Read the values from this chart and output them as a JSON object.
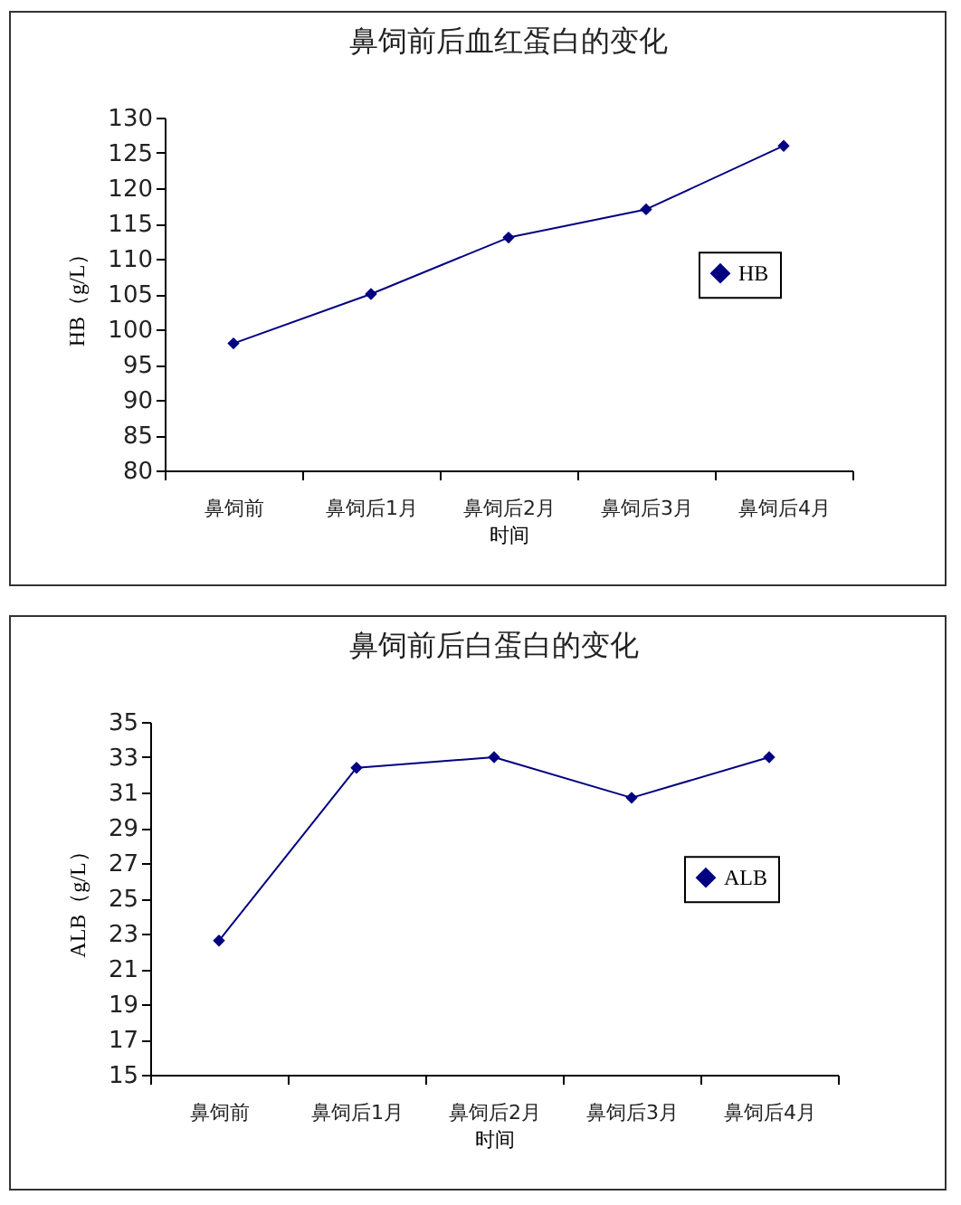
{
  "chart_data": [
    {
      "type": "line",
      "title": "鼻饲前后血红蛋白的变化",
      "xlabel": "时间",
      "ylabel": "HB（g/L）",
      "categories": [
        "鼻饲前",
        "鼻饲后1月",
        "鼻饲后2月",
        "鼻饲后3月",
        "鼻饲后4月"
      ],
      "series": [
        {
          "name": "HB",
          "color": "#000080",
          "values": [
            98,
            105,
            113,
            117,
            126
          ]
        }
      ],
      "ylim": [
        80,
        130
      ],
      "yticks": [
        80,
        85,
        90,
        95,
        100,
        105,
        110,
        115,
        120,
        125,
        130
      ],
      "grid": false,
      "legend": "right",
      "marker": "diamond"
    },
    {
      "type": "line",
      "title": "鼻饲前后白蛋白的变化",
      "xlabel": "时间",
      "ylabel": "ALB（g/L）",
      "categories": [
        "鼻饲前",
        "鼻饲后1月",
        "鼻饲后2月",
        "鼻饲后3月",
        "鼻饲后4月"
      ],
      "series": [
        {
          "name": "ALB",
          "color": "#000080",
          "values": [
            22.6,
            32.4,
            33.0,
            30.7,
            33.0
          ]
        }
      ],
      "ylim": [
        15,
        35
      ],
      "yticks": [
        15,
        17,
        19,
        21,
        23,
        25,
        27,
        29,
        31,
        33,
        35
      ],
      "grid": false,
      "legend": "right",
      "marker": "diamond"
    }
  ]
}
